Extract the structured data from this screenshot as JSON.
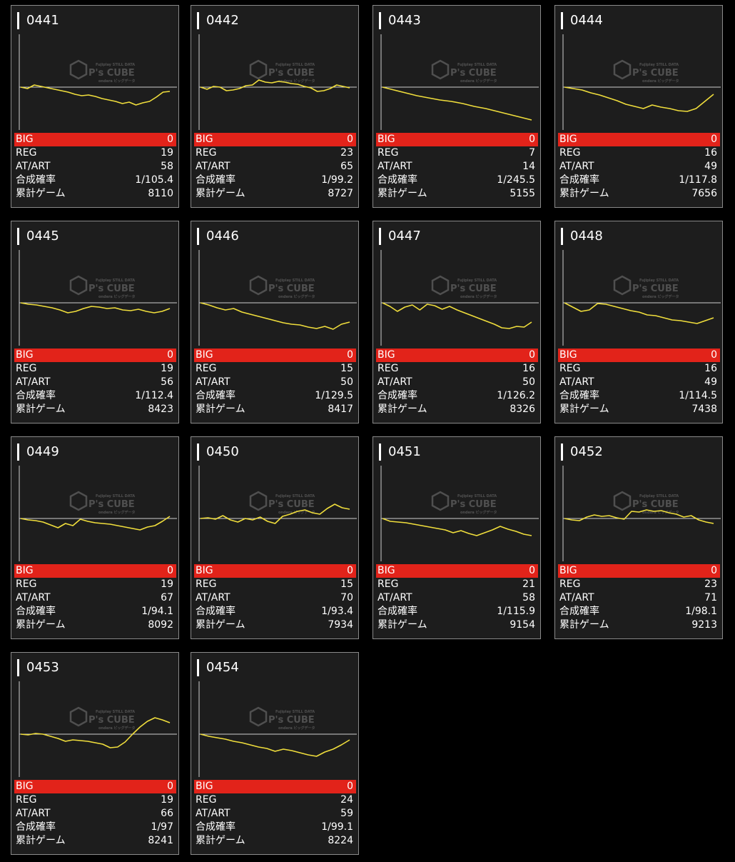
{
  "labels": {
    "big": "BIG",
    "reg": "REG",
    "at_art": "AT/ART",
    "prob": "合成確率",
    "games": "累計ゲーム"
  },
  "watermark": {
    "brand": "P's CUBE",
    "tagline": "Fujiplay STILL DATA",
    "sub": "ondera ビッグデータ"
  },
  "colors": {
    "background": "#000000",
    "card": "#1d1d1d",
    "big_bar": "#e2231a",
    "line": "#f0de3c",
    "axis": "#cfcfcf"
  },
  "machines": [
    {
      "number": "0441",
      "big": "0",
      "reg": "19",
      "at_art": "58",
      "prob": "1/105.4",
      "games": "8110",
      "graph": [
        0,
        -2,
        3,
        1,
        -1,
        -3,
        -5,
        -7,
        -10,
        -12,
        -11,
        -13,
        -16,
        -18,
        -20,
        -23,
        -21,
        -25,
        -22,
        -20,
        -14,
        -7,
        -6
      ]
    },
    {
      "number": "0442",
      "big": "0",
      "reg": "23",
      "at_art": "65",
      "prob": "1/99.2",
      "games": "8727",
      "graph": [
        0,
        -3,
        1,
        0,
        -5,
        -4,
        -2,
        2,
        3,
        10,
        7,
        6,
        8,
        7,
        5,
        4,
        1,
        -1,
        -6,
        -5,
        -2,
        3,
        1,
        -1
      ]
    },
    {
      "number": "0443",
      "big": "0",
      "reg": "7",
      "at_art": "14",
      "prob": "1/245.5",
      "games": "5155",
      "graph": [
        0,
        -4,
        -8,
        -12,
        -15,
        -18,
        -20,
        -23,
        -27,
        -30,
        -34,
        -38,
        -42,
        -46
      ]
    },
    {
      "number": "0444",
      "big": "0",
      "reg": "16",
      "at_art": "49",
      "prob": "1/117.8",
      "games": "7656",
      "graph": [
        0,
        -2,
        -4,
        -8,
        -11,
        -15,
        -19,
        -24,
        -27,
        -30,
        -25,
        -28,
        -30,
        -33,
        -34,
        -30,
        -20,
        -10
      ]
    },
    {
      "number": "0445",
      "big": "0",
      "reg": "19",
      "at_art": "56",
      "prob": "1/112.4",
      "games": "8423",
      "graph": [
        0,
        -2,
        -3,
        -5,
        -7,
        -10,
        -14,
        -12,
        -8,
        -5,
        -6,
        -8,
        -7,
        -10,
        -11,
        -9,
        -12,
        -14,
        -12,
        -8
      ]
    },
    {
      "number": "0446",
      "big": "0",
      "reg": "15",
      "at_art": "50",
      "prob": "1/129.5",
      "games": "8417",
      "graph": [
        0,
        -3,
        -7,
        -10,
        -8,
        -13,
        -16,
        -19,
        -22,
        -25,
        -28,
        -30,
        -31,
        -34,
        -36,
        -33,
        -37,
        -30,
        -27
      ]
    },
    {
      "number": "0447",
      "big": "0",
      "reg": "16",
      "at_art": "50",
      "prob": "1/126.2",
      "games": "8326",
      "graph": [
        0,
        -5,
        -12,
        -6,
        -3,
        -10,
        -2,
        -4,
        -9,
        -5,
        -10,
        -14,
        -18,
        -22,
        -26,
        -30,
        -35,
        -36,
        -33,
        -34,
        -27
      ]
    },
    {
      "number": "0448",
      "big": "0",
      "reg": "16",
      "at_art": "49",
      "prob": "1/114.5",
      "games": "7438",
      "graph": [
        0,
        -6,
        -12,
        -10,
        -1,
        -2,
        -5,
        -8,
        -11,
        -13,
        -17,
        -18,
        -21,
        -24,
        -25,
        -27,
        -29,
        -25,
        -21
      ]
    },
    {
      "number": "0449",
      "big": "0",
      "reg": "19",
      "at_art": "67",
      "prob": "1/94.1",
      "games": "8092",
      "graph": [
        0,
        -2,
        -3,
        -5,
        -9,
        -13,
        -7,
        -10,
        -1,
        -4,
        -6,
        -7,
        -8,
        -10,
        -12,
        -14,
        -16,
        -12,
        -10,
        -4,
        3
      ]
    },
    {
      "number": "0450",
      "big": "0",
      "reg": "15",
      "at_art": "70",
      "prob": "1/93.4",
      "games": "7934",
      "graph": [
        0,
        1,
        -1,
        4,
        -2,
        -5,
        0,
        -2,
        2,
        -4,
        -7,
        3,
        6,
        10,
        12,
        8,
        6,
        14,
        20,
        15,
        13
      ]
    },
    {
      "number": "0451",
      "big": "0",
      "reg": "21",
      "at_art": "58",
      "prob": "1/115.9",
      "games": "9154",
      "graph": [
        0,
        -4,
        -5,
        -6,
        -8,
        -10,
        -12,
        -14,
        -16,
        -20,
        -17,
        -21,
        -24,
        -20,
        -16,
        -11,
        -15,
        -18,
        -22,
        -24
      ]
    },
    {
      "number": "0452",
      "big": "0",
      "reg": "23",
      "at_art": "71",
      "prob": "1/98.1",
      "games": "9213",
      "graph": [
        0,
        -2,
        -3,
        2,
        5,
        3,
        4,
        1,
        -1,
        10,
        9,
        12,
        10,
        11,
        8,
        6,
        2,
        4,
        -2,
        -5,
        -7
      ]
    },
    {
      "number": "0453",
      "big": "0",
      "reg": "19",
      "at_art": "66",
      "prob": "1/97",
      "games": "8241",
      "graph": [
        0,
        -1,
        1,
        0,
        -3,
        -6,
        -10,
        -8,
        -9,
        -10,
        -12,
        -14,
        -19,
        -18,
        -11,
        0,
        10,
        18,
        23,
        20,
        16
      ]
    },
    {
      "number": "0454",
      "big": "0",
      "reg": "24",
      "at_art": "59",
      "prob": "1/99.1",
      "games": "8224",
      "graph": [
        0,
        -3,
        -5,
        -7,
        -10,
        -12,
        -15,
        -18,
        -20,
        -24,
        -21,
        -23,
        -26,
        -29,
        -31,
        -25,
        -21,
        -15,
        -8
      ]
    }
  ]
}
